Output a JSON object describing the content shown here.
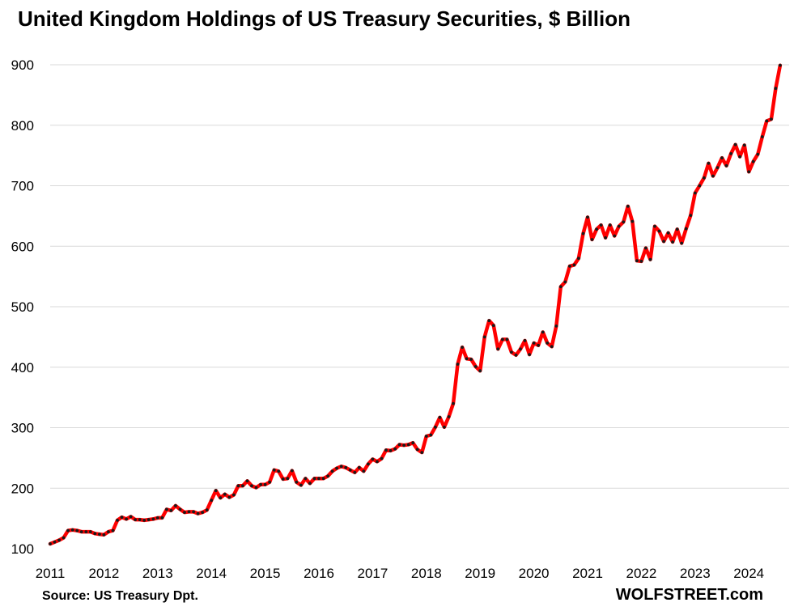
{
  "chart_data": {
    "type": "line",
    "title": "United Kingdom Holdings of US Treasury Securities, $ Billion",
    "xlabel": "",
    "ylabel": "",
    "ylim": [
      100,
      900
    ],
    "yticks": [
      100,
      200,
      300,
      400,
      500,
      600,
      700,
      800,
      900
    ],
    "xlim": [
      2011,
      2024.75
    ],
    "xticks": [
      "2011",
      "2012",
      "2013",
      "2014",
      "2015",
      "2016",
      "2017",
      "2018",
      "2019",
      "2020",
      "2021",
      "2022",
      "2023",
      "2024"
    ],
    "grid": "horizontal",
    "legend": "none",
    "colors": {
      "line": "#ff0000",
      "marker": "#1a1a1a",
      "grid": "#d9d9d9"
    },
    "series": [
      {
        "x": [
          "2011-01",
          "2011-02",
          "2011-03",
          "2011-04",
          "2011-05",
          "2011-06",
          "2011-07",
          "2011-08",
          "2011-09",
          "2011-10",
          "2011-11",
          "2011-12",
          "2012-01",
          "2012-02",
          "2012-03",
          "2012-04",
          "2012-05",
          "2012-06",
          "2012-07",
          "2012-08",
          "2012-09",
          "2012-10",
          "2012-11",
          "2012-12",
          "2013-01",
          "2013-02",
          "2013-03",
          "2013-04",
          "2013-05",
          "2013-06",
          "2013-07",
          "2013-08",
          "2013-09",
          "2013-10",
          "2013-11",
          "2013-12",
          "2014-01",
          "2014-02",
          "2014-03",
          "2014-04",
          "2014-05",
          "2014-06",
          "2014-07",
          "2014-08",
          "2014-09",
          "2014-10",
          "2014-11",
          "2014-12",
          "2015-01",
          "2015-02",
          "2015-03",
          "2015-04",
          "2015-05",
          "2015-06",
          "2015-07",
          "2015-08",
          "2015-09",
          "2015-10",
          "2015-11",
          "2015-12",
          "2016-01",
          "2016-02",
          "2016-03",
          "2016-04",
          "2016-05",
          "2016-06",
          "2016-07",
          "2016-08",
          "2016-09",
          "2016-10",
          "2016-11",
          "2016-12",
          "2017-01",
          "2017-02",
          "2017-03",
          "2017-04",
          "2017-05",
          "2017-06",
          "2017-07",
          "2017-08",
          "2017-09",
          "2017-10",
          "2017-11",
          "2017-12",
          "2018-01",
          "2018-02",
          "2018-03",
          "2018-04",
          "2018-05",
          "2018-06",
          "2018-07",
          "2018-08",
          "2018-09",
          "2018-10",
          "2018-11",
          "2018-12",
          "2019-01",
          "2019-02",
          "2019-03",
          "2019-04",
          "2019-05",
          "2019-06",
          "2019-07",
          "2019-08",
          "2019-09",
          "2019-10",
          "2019-11",
          "2019-12",
          "2020-01",
          "2020-02",
          "2020-03",
          "2020-04",
          "2020-05",
          "2020-06",
          "2020-07",
          "2020-08",
          "2020-09",
          "2020-10",
          "2020-11",
          "2020-12",
          "2021-01",
          "2021-02",
          "2021-03",
          "2021-04",
          "2021-05",
          "2021-06",
          "2021-07",
          "2021-08",
          "2021-09",
          "2021-10",
          "2021-11",
          "2021-12",
          "2022-01",
          "2022-02",
          "2022-03",
          "2022-04",
          "2022-05",
          "2022-06",
          "2022-07",
          "2022-08",
          "2022-09",
          "2022-10",
          "2022-11",
          "2022-12",
          "2023-01",
          "2023-02",
          "2023-03",
          "2023-04",
          "2023-05",
          "2023-06",
          "2023-07",
          "2023-08",
          "2023-09",
          "2023-10",
          "2023-11",
          "2023-12",
          "2024-01",
          "2024-02",
          "2024-03",
          "2024-04",
          "2024-05",
          "2024-06",
          "2024-07",
          "2024-08"
        ],
        "values": [
          108,
          111,
          114,
          118,
          130,
          131,
          130,
          128,
          128,
          128,
          125,
          124,
          123,
          128,
          130,
          147,
          152,
          149,
          153,
          148,
          148,
          147,
          148,
          149,
          151,
          151,
          165,
          163,
          171,
          165,
          160,
          161,
          161,
          158,
          160,
          164,
          180,
          196,
          184,
          190,
          185,
          189,
          204,
          204,
          212,
          204,
          201,
          206,
          206,
          210,
          230,
          228,
          215,
          216,
          229,
          210,
          205,
          216,
          208,
          216,
          216,
          216,
          220,
          228,
          233,
          236,
          234,
          230,
          226,
          234,
          228,
          240,
          248,
          244,
          249,
          263,
          262,
          265,
          272,
          271,
          272,
          275,
          264,
          259,
          286,
          288,
          301,
          317,
          301,
          318,
          340,
          405,
          433,
          414,
          413,
          401,
          394,
          450,
          477,
          469,
          430,
          446,
          446,
          425,
          420,
          430,
          444,
          421,
          440,
          436,
          458,
          440,
          434,
          468,
          533,
          541,
          567,
          569,
          580,
          621,
          648,
          611,
          628,
          635,
          614,
          635,
          617,
          633,
          640,
          666,
          641,
          576,
          575,
          597,
          578,
          633,
          625,
          608,
          622,
          607,
          628,
          605,
          629,
          651,
          688,
          700,
          713,
          737,
          716,
          730,
          746,
          733,
          753,
          768,
          748,
          767,
          723,
          740,
          752,
          781,
          807,
          810,
          861,
          899
        ]
      }
    ]
  },
  "source_note": "Source: US Treasury  Dpt.",
  "brand": "WOLFSTREET.com"
}
